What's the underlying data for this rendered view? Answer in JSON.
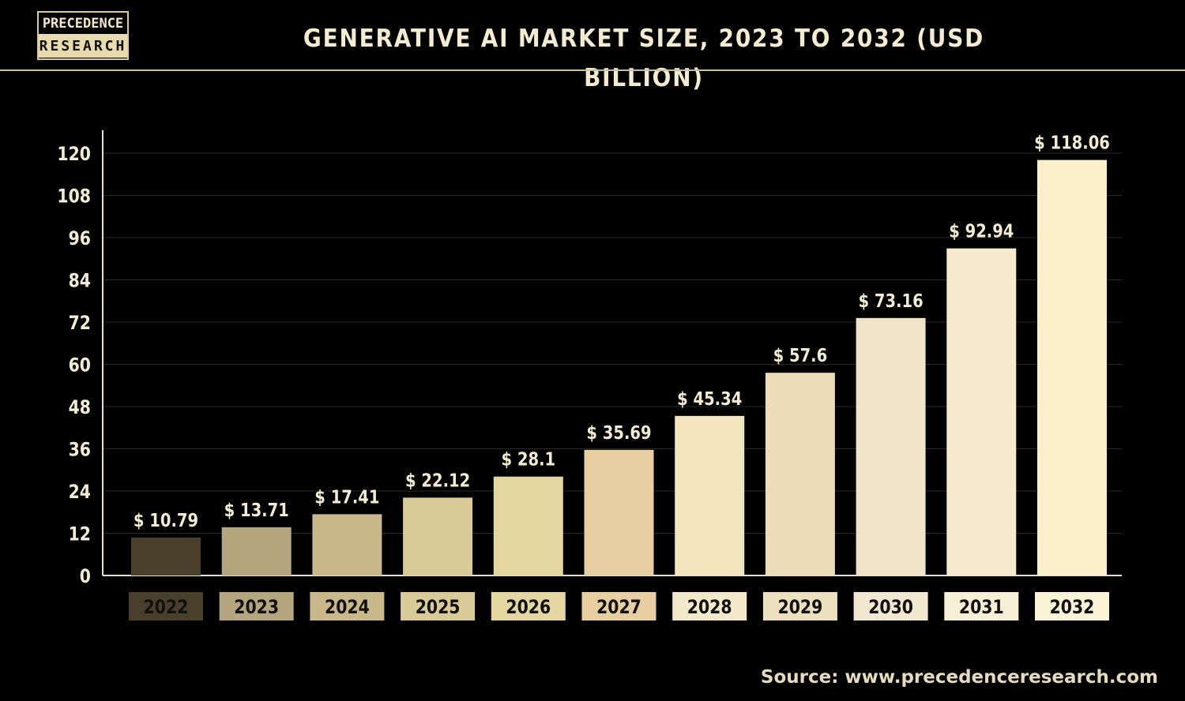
{
  "logo": {
    "line1": "PRECEDENCE",
    "line2": "RESEARCH"
  },
  "title": "GENERATIVE AI MARKET SIZE, 2023 TO 2032 (USD BILLION)",
  "source": "Source: www.precedenceresearch.com",
  "chart_data": {
    "type": "bar",
    "title": "GENERATIVE AI MARKET SIZE, 2023 TO 2032 (USD BILLION)",
    "categories": [
      "2022",
      "2023",
      "2024",
      "2025",
      "2026",
      "2027",
      "2028",
      "2029",
      "2030",
      "2031",
      "2032"
    ],
    "values": [
      10.79,
      13.71,
      17.41,
      22.12,
      28.1,
      35.69,
      45.34,
      57.6,
      73.16,
      92.94,
      118.06
    ],
    "value_labels": [
      "$ 10.79",
      "$ 13.71",
      "$ 17.41",
      "$ 22.12",
      "$ 28.1",
      "$ 35.69",
      "$ 45.34",
      "$ 57.6",
      "$ 73.16",
      "$ 92.94",
      "$ 118.06"
    ],
    "ylim": [
      0,
      120
    ],
    "yticks": [
      0,
      12,
      24,
      36,
      48,
      60,
      72,
      84,
      96,
      108,
      120
    ],
    "grid": true,
    "xlabel": "",
    "ylabel": "",
    "bar_colors": [
      "#4a3f2a",
      "#b4a67e",
      "#c9b98a",
      "#d9cb98",
      "#e3d6a0",
      "#e8cfa2",
      "#f2e5bd",
      "#ecdcb7",
      "#efe3c8",
      "#f5ead0",
      "#faefc8"
    ],
    "label_box_colors": [
      "#4a3f2a",
      "#b4a67e",
      "#c9b98a",
      "#d9cb98",
      "#e3d6a0",
      "#e8cfa2",
      "#f3e9c8",
      "#ede0bf",
      "#f2e8d0",
      "#f7eed6",
      "#fbf3d6"
    ],
    "label_text_colors": [
      "#111111",
      "#111111",
      "#111111",
      "#111111",
      "#111111",
      "#111111",
      "#111111",
      "#111111",
      "#111111",
      "#111111",
      "#111111"
    ]
  }
}
